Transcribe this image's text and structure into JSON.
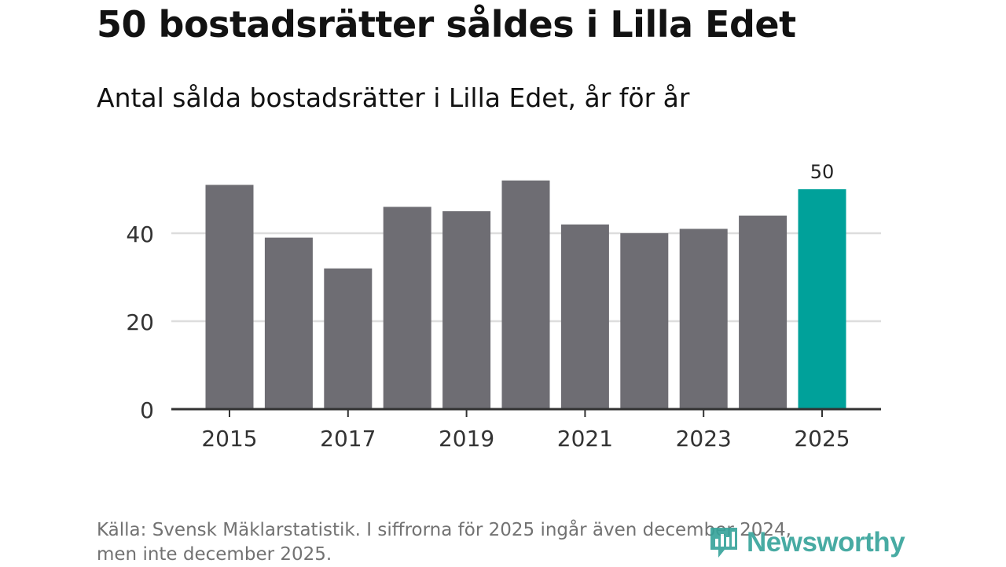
{
  "title": "50 bostadsrätter såldes i Lilla Edet",
  "subtitle": "Antal sålda bostadsrätter i Lilla Edet, år för år",
  "source_line1": "Källa: Svensk Mäklarstatistik. I siffrorna för 2025 ingår även december 2024,",
  "source_line2": "men inte december 2025.",
  "brand": {
    "name": "Newsworthy",
    "icon": "newsworthy-logo-icon"
  },
  "colors": {
    "bar": "#6e6d73",
    "highlight": "#00a19a",
    "grid": "#dddddd",
    "axis": "#333333",
    "brand": "#35a39a"
  },
  "chart_data": {
    "type": "bar",
    "title": "Antal sålda bostadsrätter i Lilla Edet, år för år",
    "xlabel": "",
    "ylabel": "",
    "categories": [
      "2015",
      "2016",
      "2017",
      "2018",
      "2019",
      "2020",
      "2021",
      "2022",
      "2023",
      "2024",
      "2025"
    ],
    "values": [
      51,
      39,
      32,
      46,
      45,
      52,
      42,
      40,
      41,
      44,
      50
    ],
    "highlight_index": 10,
    "highlight_label": "50",
    "ylim": [
      0,
      56
    ],
    "yticks": [
      0,
      20,
      40
    ],
    "xtick_labels": [
      "2015",
      "2017",
      "2019",
      "2021",
      "2023",
      "2025"
    ],
    "grid": true
  }
}
